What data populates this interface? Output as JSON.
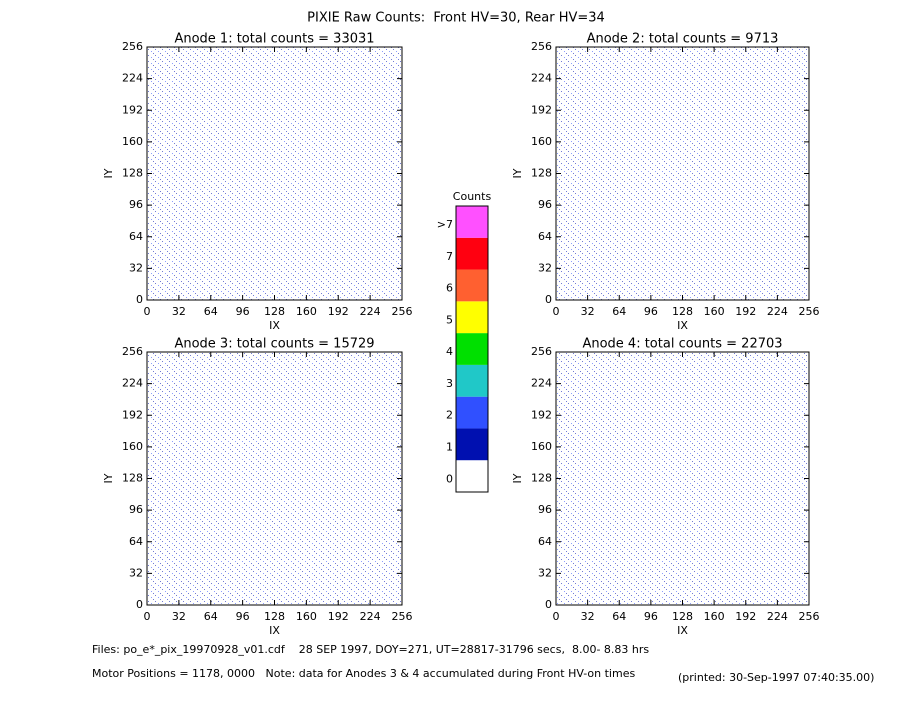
{
  "title": "PIXIE Raw Counts:  Front HV=30, Rear HV=34",
  "chart_data": [
    {
      "type": "heatmap",
      "title": "Anode 1: total counts = 33031",
      "xlabel": "IX",
      "ylabel": "IY",
      "xlim": [
        0,
        256
      ],
      "ylim": [
        0,
        256
      ],
      "xticks": [
        0,
        32,
        64,
        96,
        128,
        160,
        192,
        224,
        256
      ],
      "yticks": [
        0,
        32,
        64,
        96,
        128,
        160,
        192,
        224,
        256
      ]
    },
    {
      "type": "heatmap",
      "title": "Anode 2: total counts = 9713",
      "xlabel": "IX",
      "ylabel": "IY",
      "xlim": [
        0,
        256
      ],
      "ylim": [
        0,
        256
      ],
      "xticks": [
        0,
        32,
        64,
        96,
        128,
        160,
        192,
        224,
        256
      ],
      "yticks": [
        0,
        32,
        64,
        96,
        128,
        160,
        192,
        224,
        256
      ]
    },
    {
      "type": "heatmap",
      "title": "Anode 3: total counts = 15729",
      "xlabel": "IX",
      "ylabel": "IY",
      "xlim": [
        0,
        256
      ],
      "ylim": [
        0,
        256
      ],
      "xticks": [
        0,
        32,
        64,
        96,
        128,
        160,
        192,
        224,
        256
      ],
      "yticks": [
        0,
        32,
        64,
        96,
        128,
        160,
        192,
        224,
        256
      ]
    },
    {
      "type": "heatmap",
      "title": "Anode 4: total counts = 22703",
      "xlabel": "IX",
      "ylabel": "IY",
      "xlim": [
        0,
        256
      ],
      "ylim": [
        0,
        256
      ],
      "xticks": [
        0,
        32,
        64,
        96,
        128,
        160,
        192,
        224,
        256
      ],
      "yticks": [
        0,
        32,
        64,
        96,
        128,
        160,
        192,
        224,
        256
      ]
    }
  ],
  "colorbar": {
    "title": "Counts",
    "levels": [
      {
        "label": "0",
        "color": "#ffffff"
      },
      {
        "label": "1",
        "color": "#0010b0"
      },
      {
        "label": "2",
        "color": "#3050ff"
      },
      {
        "label": "3",
        "color": "#20c8c8"
      },
      {
        "label": "4",
        "color": "#00e000"
      },
      {
        "label": "5",
        "color": "#ffff00"
      },
      {
        "label": "6",
        "color": "#ff6030"
      },
      {
        "label": "7",
        "color": "#ff0010"
      },
      {
        "label": ">7",
        "color": "#ff50ff"
      }
    ]
  },
  "footer": {
    "files": "Files: po_e*_pix_19970928_v01.cdf    28 SEP 1997, DOY=271, UT=28817-31796 secs,  8.00- 8.83 hrs",
    "motor": "Motor Positions = 1178, 0000   Note: data for Anodes 3 & 4 accumulated during Front HV-on times",
    "printed": "(printed: 30-Sep-1997 07:40:35.00)"
  }
}
